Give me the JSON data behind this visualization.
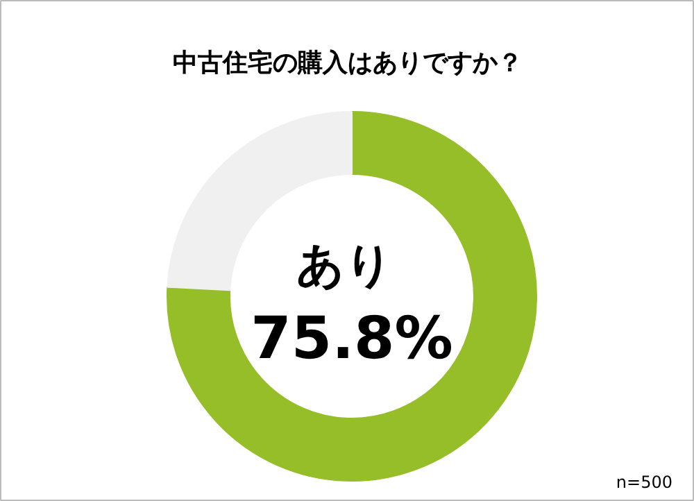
{
  "chart_data": {
    "type": "donut",
    "title": "中古住宅の購入はありですか？",
    "categories": [
      "あり",
      null
    ],
    "values": [
      75.8,
      24.2
    ],
    "colors": [
      "#96be28",
      "#f0f0f0"
    ],
    "value_labels": [
      "75.8%",
      null
    ],
    "annotations": [
      "n=500"
    ]
  }
}
